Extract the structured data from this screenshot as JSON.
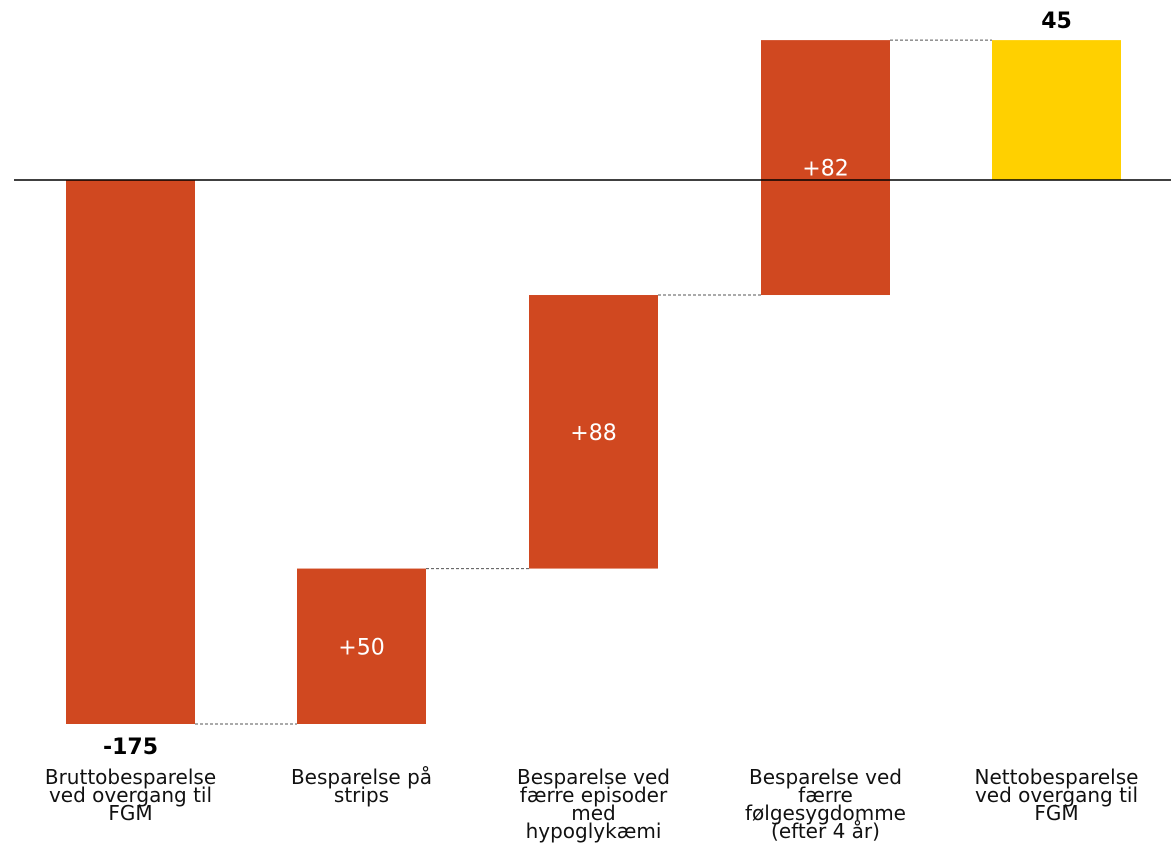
{
  "chart_data": {
    "type": "waterfall",
    "categories": [
      "Bruttobesparelse ved overgang til FGM",
      "Besparelse på strips",
      "Besparelse ved færre episoder med hypoglykæmi",
      "Besparelse ved færre følgesygdomme (efter 4 år)",
      "Nettobesparelse ved overgang til FGM"
    ],
    "values": [
      -175,
      50,
      88,
      82,
      45
    ],
    "bar_kinds": [
      "start",
      "delta",
      "delta",
      "delta",
      "total"
    ],
    "labels": [
      "-175",
      "+50",
      "+88",
      "+82",
      "45"
    ],
    "colors": {
      "bar": "#D04820",
      "total": "#FFD000",
      "axis": "#000000",
      "connector": "#555555"
    },
    "ylim": [
      -175,
      45
    ],
    "title": "",
    "xlabel": "",
    "ylabel": ""
  }
}
